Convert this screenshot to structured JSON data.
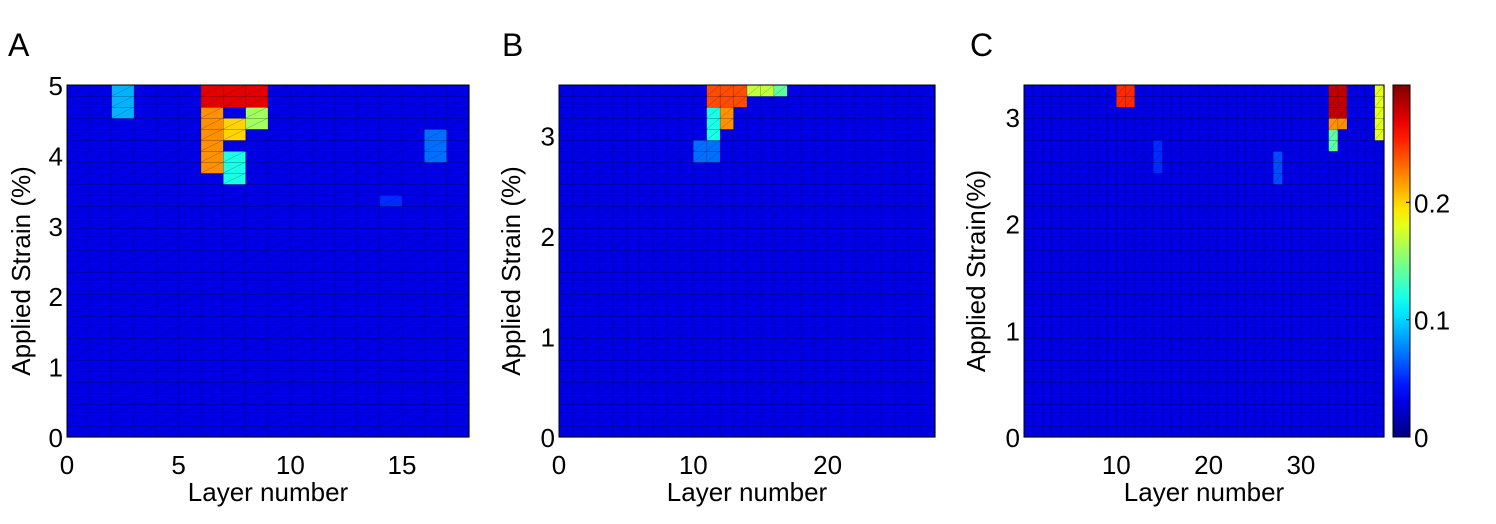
{
  "chart_data": [
    {
      "type": "heatmap",
      "panel_label": "A",
      "xlabel": "Layer number",
      "ylabel": "Applied Strain (%)",
      "xlim": [
        0,
        18
      ],
      "ylim": [
        0,
        5
      ],
      "xticks": [
        0,
        5,
        10,
        15
      ],
      "yticks": [
        0,
        1,
        2,
        3,
        4,
        5
      ],
      "grid": {
        "cols": 18,
        "rows": 32
      },
      "base_value": 0.03,
      "hotspots": [
        {
          "x": [
            6,
            9
          ],
          "y": [
            4.7,
            5.0
          ],
          "v": 0.27
        },
        {
          "x": [
            6,
            7
          ],
          "y": [
            3.8,
            4.7
          ],
          "v": 0.22
        },
        {
          "x": [
            7,
            8
          ],
          "y": [
            4.2,
            4.6
          ],
          "v": 0.2
        },
        {
          "x": [
            8,
            9
          ],
          "y": [
            4.3,
            4.8
          ],
          "v": 0.16
        },
        {
          "x": [
            5.7,
            6.2
          ],
          "y": [
            3.7,
            4.8
          ],
          "v": 0.15
        },
        {
          "x": [
            7,
            8
          ],
          "y": [
            3.6,
            4.1
          ],
          "v": 0.12
        },
        {
          "x": [
            2,
            3
          ],
          "y": [
            4.6,
            5.0
          ],
          "v": 0.09
        },
        {
          "x": [
            16,
            17
          ],
          "y": [
            3.9,
            4.4
          ],
          "v": 0.07
        },
        {
          "x": [
            14,
            15
          ],
          "y": [
            3.3,
            3.5
          ],
          "v": 0.05
        }
      ]
    },
    {
      "type": "heatmap",
      "panel_label": "B",
      "xlabel": "Layer number",
      "ylabel": "Applied Strain (%)",
      "xlim": [
        0,
        28
      ],
      "ylim": [
        0,
        3.5
      ],
      "xticks": [
        0,
        10,
        20
      ],
      "yticks": [
        0,
        1,
        2,
        3
      ],
      "grid": {
        "cols": 28,
        "rows": 32
      },
      "base_value": 0.03,
      "hotspots": [
        {
          "x": [
            11.5,
            14
          ],
          "y": [
            3.25,
            3.5
          ],
          "v": 0.24
        },
        {
          "x": [
            12,
            13
          ],
          "y": [
            3.1,
            3.3
          ],
          "v": 0.22
        },
        {
          "x": [
            14,
            16
          ],
          "y": [
            3.35,
            3.5
          ],
          "v": 0.17
        },
        {
          "x": [
            11,
            12
          ],
          "y": [
            3.0,
            3.25
          ],
          "v": 0.12
        },
        {
          "x": [
            10.5,
            11.5
          ],
          "y": [
            2.7,
            3.0
          ],
          "v": 0.07
        },
        {
          "x": [
            16,
            17
          ],
          "y": [
            3.35,
            3.5
          ],
          "v": 0.14
        }
      ]
    },
    {
      "type": "heatmap",
      "panel_label": "C",
      "xlabel": "Layer number",
      "ylabel": "Applied Strain(%)",
      "xlim": [
        0,
        39
      ],
      "ylim": [
        0,
        3.3
      ],
      "xticks": [
        10,
        20,
        30
      ],
      "yticks": [
        0,
        1,
        2,
        3
      ],
      "grid": {
        "cols": 39,
        "rows": 32
      },
      "base_value": 0.03,
      "hotspots": [
        {
          "x": [
            10,
            12
          ],
          "y": [
            3.1,
            3.3
          ],
          "v": 0.25
        },
        {
          "x": [
            33,
            35
          ],
          "y": [
            2.95,
            3.25
          ],
          "v": 0.28
        },
        {
          "x": [
            33,
            35
          ],
          "y": [
            2.85,
            2.95
          ],
          "v": 0.22
        },
        {
          "x": [
            33,
            34
          ],
          "y": [
            2.7,
            2.85
          ],
          "v": 0.14
        },
        {
          "x": [
            33,
            35
          ],
          "y": [
            3.2,
            3.3
          ],
          "v": 0.15
        },
        {
          "x": [
            38,
            39
          ],
          "y": [
            2.8,
            3.3
          ],
          "v": 0.18
        },
        {
          "x": [
            27,
            28
          ],
          "y": [
            2.4,
            2.7
          ],
          "v": 0.06
        },
        {
          "x": [
            14,
            15
          ],
          "y": [
            2.5,
            2.8
          ],
          "v": 0.05
        }
      ]
    }
  ],
  "colorbar": {
    "vmin": 0,
    "vmax": 0.3,
    "ticks": [
      0,
      0.1,
      0.2
    ],
    "tick_labels": [
      "0",
      "0.1",
      "0.2"
    ],
    "colormap": "jet"
  }
}
